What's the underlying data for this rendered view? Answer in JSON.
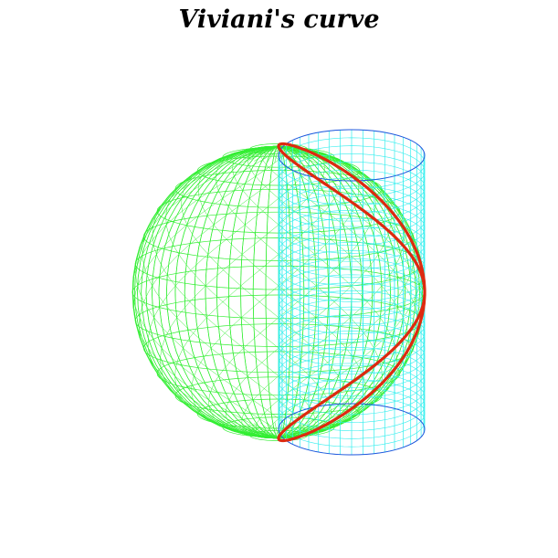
{
  "title": "Viviani's curve",
  "colors": {
    "sphere": "#33ee33",
    "cylinder_mesh": "#33eeee",
    "cylinder_rim": "#2255dd",
    "curve": "#dd2a10",
    "background": "#ffffff"
  }
}
